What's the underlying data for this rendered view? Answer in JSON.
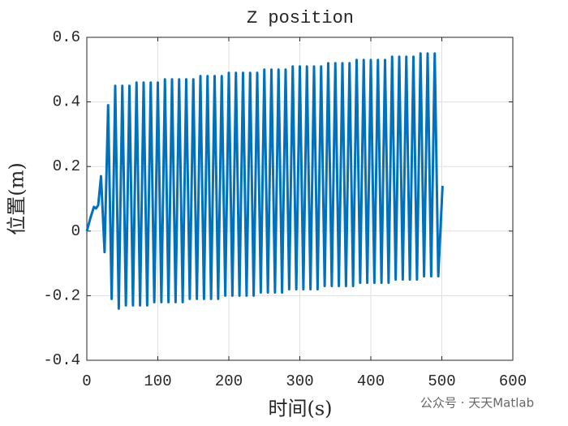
{
  "chart_data": {
    "type": "line",
    "title": "Z position",
    "xlabel": "时间(s)",
    "ylabel": "位置(m)",
    "watermark": "公众号 · 天天Matlab",
    "color": "#0072bd",
    "grid": true,
    "xlim": [
      0,
      600
    ],
    "xticks": [
      0,
      100,
      200,
      300,
      400,
      500,
      600
    ],
    "ylim": [
      -0.4,
      0.6
    ],
    "yticks": [
      -0.4,
      -0.2,
      0,
      0.2,
      0.4,
      0.6
    ],
    "x": [
      0,
      5,
      10,
      13,
      16,
      20,
      25,
      30,
      35,
      40,
      45,
      50,
      55,
      60,
      65,
      70,
      75,
      80,
      85,
      90,
      95,
      100,
      105,
      110,
      115,
      120,
      125,
      130,
      135,
      140,
      145,
      150,
      155,
      160,
      165,
      170,
      175,
      180,
      185,
      190,
      195,
      200,
      205,
      210,
      215,
      220,
      225,
      230,
      235,
      240,
      245,
      250,
      255,
      260,
      265,
      270,
      275,
      280,
      285,
      290,
      295,
      300,
      305,
      310,
      315,
      320,
      325,
      330,
      335,
      340,
      345,
      350,
      355,
      360,
      365,
      370,
      375,
      380,
      385,
      390,
      395,
      400,
      405,
      410,
      415,
      420,
      425,
      430,
      435,
      440,
      445,
      450,
      455,
      460,
      465,
      470,
      475,
      480,
      485,
      490,
      495,
      501
    ],
    "values": [
      0,
      0.04,
      0.075,
      0.07,
      0.08,
      0.17,
      -0.065,
      0.39,
      -0.21,
      0.45,
      -0.24,
      0.45,
      -0.23,
      0.45,
      -0.23,
      0.46,
      -0.23,
      0.46,
      -0.23,
      0.46,
      -0.22,
      0.46,
      -0.22,
      0.47,
      -0.22,
      0.47,
      -0.22,
      0.47,
      -0.22,
      0.47,
      -0.21,
      0.47,
      -0.21,
      0.48,
      -0.21,
      0.48,
      -0.21,
      0.48,
      -0.21,
      0.48,
      -0.2,
      0.49,
      -0.2,
      0.49,
      -0.2,
      0.49,
      -0.2,
      0.49,
      -0.2,
      0.49,
      -0.19,
      0.5,
      -0.19,
      0.5,
      -0.19,
      0.5,
      -0.19,
      0.5,
      -0.18,
      0.51,
      -0.18,
      0.51,
      -0.18,
      0.51,
      -0.18,
      0.51,
      -0.18,
      0.51,
      -0.17,
      0.52,
      -0.17,
      0.52,
      -0.17,
      0.52,
      -0.17,
      0.52,
      -0.17,
      0.53,
      -0.16,
      0.53,
      -0.16,
      0.53,
      -0.16,
      0.53,
      -0.16,
      0.53,
      -0.16,
      0.54,
      -0.15,
      0.54,
      -0.15,
      0.54,
      -0.15,
      0.54,
      -0.15,
      0.55,
      -0.14,
      0.55,
      -0.14,
      0.55,
      -0.14,
      0.14
    ]
  }
}
